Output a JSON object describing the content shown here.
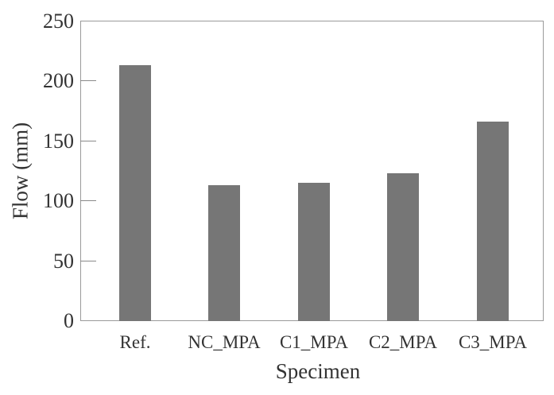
{
  "chart_data": {
    "type": "bar",
    "title": "",
    "xlabel": "Specimen",
    "ylabel": "Flow (mm)",
    "categories": [
      "Ref.",
      "NC_MPA",
      "C1_MPA",
      "C2_MPA",
      "C3_MPA"
    ],
    "values": [
      213,
      113,
      115,
      123,
      166
    ],
    "ylim": [
      0,
      250
    ],
    "yticks": [
      "0",
      "50",
      "100",
      "150",
      "200",
      "250"
    ],
    "grid": false,
    "legend": null,
    "bar_color": "#767676"
  }
}
